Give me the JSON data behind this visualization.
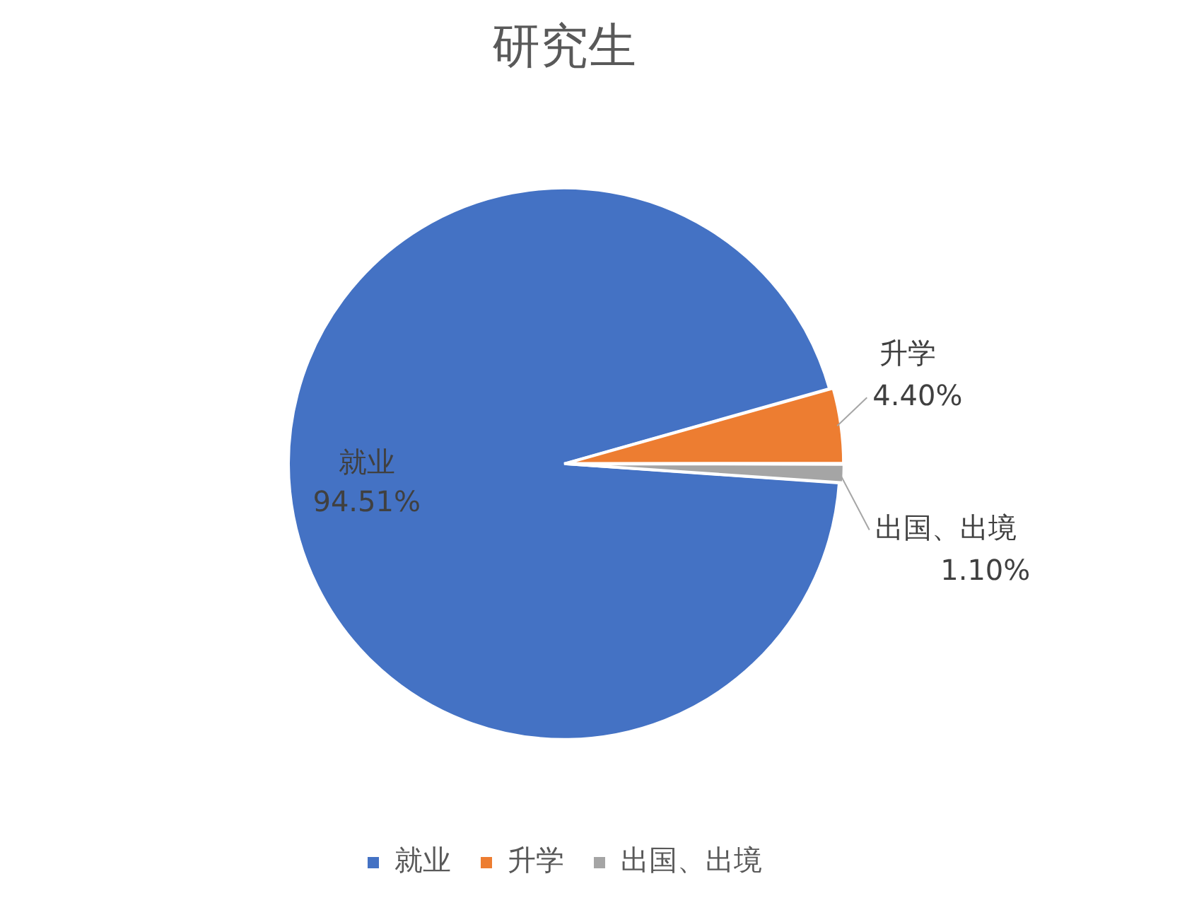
{
  "chart_data": {
    "type": "pie",
    "title": "研究生",
    "categories": [
      "就业",
      "升学",
      "出国、出境"
    ],
    "values": [
      94.51,
      4.4,
      1.1
    ],
    "colors": [
      "#4472c4",
      "#ed7d31",
      "#a5a5a5"
    ],
    "value_labels": [
      "94.51%",
      "4.40%",
      "1.10%"
    ],
    "legend": "bottom"
  }
}
